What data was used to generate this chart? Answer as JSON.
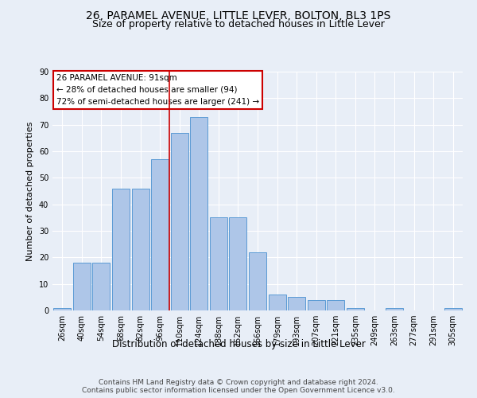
{
  "title1": "26, PARAMEL AVENUE, LITTLE LEVER, BOLTON, BL3 1PS",
  "title2": "Size of property relative to detached houses in Little Lever",
  "xlabel": "Distribution of detached houses by size in Little Lever",
  "ylabel": "Number of detached properties",
  "bar_labels": [
    "26sqm",
    "40sqm",
    "54sqm",
    "68sqm",
    "82sqm",
    "96sqm",
    "110sqm",
    "124sqm",
    "138sqm",
    "152sqm",
    "166sqm",
    "179sqm",
    "193sqm",
    "207sqm",
    "221sqm",
    "235sqm",
    "249sqm",
    "263sqm",
    "277sqm",
    "291sqm",
    "305sqm"
  ],
  "bar_values": [
    1,
    18,
    18,
    46,
    46,
    57,
    67,
    73,
    35,
    35,
    22,
    6,
    5,
    4,
    4,
    1,
    0,
    1,
    0,
    0,
    1
  ],
  "bar_color": "#aec6e8",
  "bar_edge_color": "#5b9bd5",
  "bg_color": "#e8eef7",
  "grid_color": "#ffffff",
  "vline_x": 5.5,
  "vline_color": "#cc0000",
  "annotation_text": "26 PARAMEL AVENUE: 91sqm\n← 28% of detached houses are smaller (94)\n72% of semi-detached houses are larger (241) →",
  "annotation_box_color": "#ffffff",
  "annotation_box_edge": "#cc0000",
  "ylim": [
    0,
    90
  ],
  "yticks": [
    0,
    10,
    20,
    30,
    40,
    50,
    60,
    70,
    80,
    90
  ],
  "footer": "Contains HM Land Registry data © Crown copyright and database right 2024.\nContains public sector information licensed under the Open Government Licence v3.0.",
  "title1_fontsize": 10,
  "title2_fontsize": 9,
  "xlabel_fontsize": 8.5,
  "ylabel_fontsize": 8,
  "tick_fontsize": 7,
  "annotation_fontsize": 7.5,
  "footer_fontsize": 6.5
}
